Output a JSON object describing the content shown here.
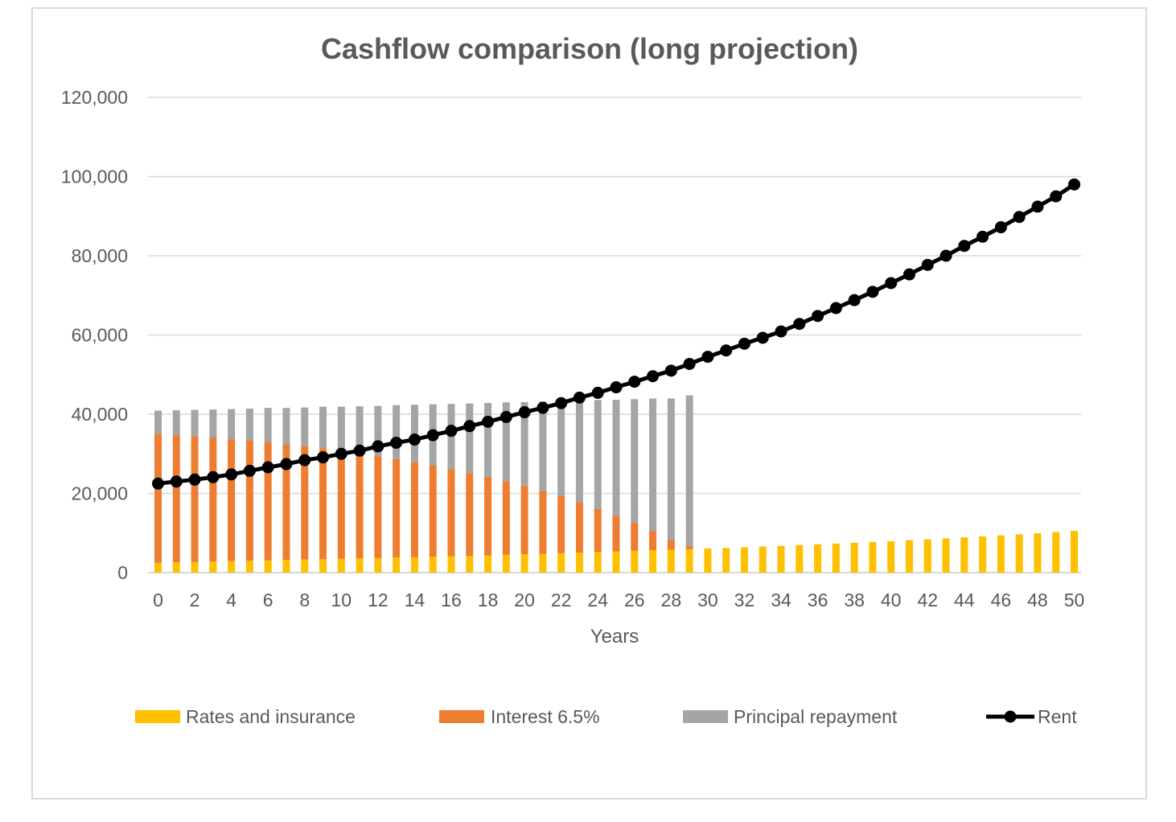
{
  "chart_data": {
    "type": "bar",
    "stacked": true,
    "title": "Cashflow comparison (long projection)",
    "xlabel": "Years",
    "ylabel": "",
    "ylim": [
      0,
      120000
    ],
    "yticks": [
      0,
      20000,
      40000,
      60000,
      80000,
      100000,
      120000
    ],
    "ytick_labels": [
      "0",
      "20,000",
      "40,000",
      "60,000",
      "80,000",
      "100,000",
      "120,000"
    ],
    "x": [
      0,
      1,
      2,
      3,
      4,
      5,
      6,
      7,
      8,
      9,
      10,
      11,
      12,
      13,
      14,
      15,
      16,
      17,
      18,
      19,
      20,
      21,
      22,
      23,
      24,
      25,
      26,
      27,
      28,
      29,
      30,
      31,
      32,
      33,
      34,
      35,
      36,
      37,
      38,
      39,
      40,
      41,
      42,
      43,
      44,
      45,
      46,
      47,
      48,
      49,
      50
    ],
    "xtick_labels": [
      "0",
      "2",
      "4",
      "6",
      "8",
      "10",
      "12",
      "14",
      "16",
      "18",
      "20",
      "22",
      "24",
      "26",
      "28",
      "30",
      "32",
      "34",
      "36",
      "38",
      "40",
      "42",
      "44",
      "46",
      "48",
      "50"
    ],
    "grid": true,
    "legend_position": "bottom",
    "series": [
      {
        "name": "Rates and insurance",
        "type": "bar",
        "color": "#ffc000",
        "values": [
          2500,
          2600,
          2700,
          2800,
          2900,
          3000,
          3100,
          3200,
          3300,
          3400,
          3500,
          3600,
          3700,
          3800,
          3900,
          4000,
          4100,
          4200,
          4350,
          4500,
          4650,
          4750,
          4900,
          5050,
          5200,
          5350,
          5500,
          5650,
          5800,
          5950,
          6100,
          6250,
          6400,
          6600,
          6750,
          6950,
          7150,
          7350,
          7550,
          7750,
          7950,
          8200,
          8400,
          8650,
          8900,
          9150,
          9400,
          9700,
          9950,
          10250,
          10550
        ]
      },
      {
        "name": "Interest 6.5%",
        "type": "bar",
        "color": "#ed7d31",
        "values": [
          32500,
          32100,
          31700,
          31300,
          30800,
          30300,
          29800,
          29200,
          28600,
          28000,
          27300,
          26500,
          25700,
          24900,
          24000,
          23100,
          22000,
          20900,
          19800,
          18600,
          17300,
          15900,
          14400,
          12700,
          10900,
          9000,
          7000,
          4800,
          2500,
          800,
          0,
          0,
          0,
          0,
          0,
          0,
          0,
          0,
          0,
          0,
          0,
          0,
          0,
          0,
          0,
          0,
          0,
          0,
          0,
          0,
          0
        ]
      },
      {
        "name": "Principal repayment",
        "type": "bar",
        "color": "#a5a5a5",
        "values": [
          5900,
          6300,
          6700,
          7100,
          7600,
          8100,
          8700,
          9200,
          9800,
          10500,
          11100,
          11900,
          12700,
          13600,
          14500,
          15400,
          16500,
          17600,
          18700,
          19900,
          21100,
          22600,
          24100,
          25800,
          27500,
          29300,
          31300,
          33500,
          35700,
          38000,
          0,
          0,
          0,
          0,
          0,
          0,
          0,
          0,
          0,
          0,
          0,
          0,
          0,
          0,
          0,
          0,
          0,
          0,
          0,
          0,
          0
        ]
      },
      {
        "name": "Rent",
        "type": "line",
        "color": "#000000",
        "values": [
          22500,
          23000,
          23500,
          24100,
          24800,
          25700,
          26600,
          27400,
          28400,
          29100,
          30000,
          30800,
          31900,
          32800,
          33600,
          34700,
          35800,
          37000,
          38100,
          39300,
          40500,
          41600,
          42800,
          44200,
          45400,
          46800,
          48200,
          49600,
          51000,
          52700,
          54500,
          56100,
          57800,
          59300,
          60900,
          62800,
          64800,
          66800,
          68800,
          70900,
          73100,
          75300,
          77700,
          80000,
          82500,
          84800,
          87200,
          89800,
          92400,
          95000,
          98000
        ]
      }
    ]
  }
}
